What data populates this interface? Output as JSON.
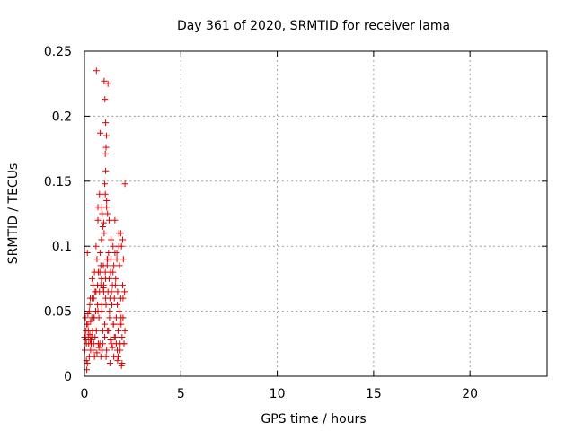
{
  "chart_data": {
    "type": "scatter",
    "title": "Day 361 of 2020, SRMTID for receiver lama",
    "xlabel": "GPS time / hours",
    "ylabel": "SRMTID / TECUs",
    "xlim": [
      0,
      24
    ],
    "ylim": [
      0,
      0.25
    ],
    "xticks": [
      0,
      5,
      10,
      15,
      20
    ],
    "xtick_labels": [
      "0",
      "5",
      "10",
      "15",
      "20"
    ],
    "yticks": [
      0,
      0.05,
      0.1,
      0.15,
      0.2,
      0.25
    ],
    "ytick_labels": [
      "0",
      "0.05",
      "0.1",
      "0.15",
      "0.2",
      "0.25"
    ],
    "grid": true,
    "marker": "plus",
    "color": "#e00000",
    "series": [
      {
        "name": "SRMTID",
        "x": [
          0.0,
          0.02,
          0.05,
          0.08,
          0.1,
          0.12,
          0.15,
          0.18,
          0.2,
          0.22,
          0.25,
          0.28,
          0.3,
          0.32,
          0.35,
          0.38,
          0.4,
          0.42,
          0.45,
          0.48,
          0.5,
          0.52,
          0.55,
          0.58,
          0.6,
          0.62,
          0.65,
          0.68,
          0.7,
          0.72,
          0.75,
          0.78,
          0.8,
          0.82,
          0.85,
          0.88,
          0.9,
          0.92,
          0.95,
          0.98,
          1.0,
          1.02,
          1.05,
          1.08,
          1.1,
          1.12,
          1.15,
          1.18,
          1.2,
          1.22,
          1.25,
          1.28,
          1.3,
          1.32,
          1.35,
          1.38,
          1.4,
          1.42,
          1.45,
          1.48,
          1.5,
          1.52,
          1.55,
          1.58,
          1.6,
          1.62,
          1.65,
          1.68,
          1.7,
          1.72,
          1.75,
          1.78,
          1.8,
          1.82,
          1.85,
          1.88,
          1.9,
          1.92,
          1.95,
          1.98,
          2.0,
          2.02,
          2.05,
          2.08,
          2.1,
          0.05,
          0.12,
          0.2,
          0.3,
          0.4,
          0.5,
          0.6,
          0.7,
          0.8,
          0.9,
          1.0,
          1.1,
          1.2,
          1.3,
          1.4,
          1.5,
          1.6,
          1.7,
          1.8,
          1.9,
          2.0,
          0.1,
          0.25,
          0.35,
          0.45,
          0.55,
          0.65,
          0.75,
          0.85,
          0.95,
          1.05,
          1.15,
          1.25,
          1.35,
          1.45,
          1.55,
          1.65,
          1.75,
          1.85,
          1.95,
          2.05,
          0.08,
          0.18,
          0.28,
          0.38,
          0.48,
          0.58,
          0.68,
          0.78,
          0.88,
          0.98,
          1.08,
          1.18,
          1.28,
          1.38,
          1.48,
          1.58,
          1.68,
          1.78,
          1.88,
          1.98,
          0.15,
          0.32,
          0.52,
          0.72,
          0.92,
          1.12,
          1.32,
          1.52,
          1.72,
          1.92,
          0.62,
          0.82,
          1.02,
          1.22,
          1.06,
          1.1,
          1.14,
          1.12,
          1.08,
          0.7,
          1.1,
          1.15,
          1.05,
          1.2,
          0.9,
          1.0,
          2.1,
          0.95,
          0.85
        ],
        "y": [
          0.03,
          0.02,
          0.045,
          0.028,
          0.012,
          0.005,
          0.095,
          0.04,
          0.03,
          0.025,
          0.05,
          0.032,
          0.028,
          0.042,
          0.025,
          0.03,
          0.06,
          0.035,
          0.07,
          0.025,
          0.045,
          0.08,
          0.065,
          0.05,
          0.1,
          0.035,
          0.09,
          0.055,
          0.12,
          0.08,
          0.045,
          0.14,
          0.025,
          0.095,
          0.07,
          0.105,
          0.05,
          0.125,
          0.035,
          0.085,
          0.065,
          0.11,
          0.04,
          0.14,
          0.075,
          0.055,
          0.13,
          0.09,
          0.035,
          0.065,
          0.095,
          0.12,
          0.045,
          0.06,
          0.08,
          0.105,
          0.025,
          0.055,
          0.07,
          0.1,
          0.04,
          0.085,
          0.06,
          0.12,
          0.03,
          0.075,
          0.045,
          0.095,
          0.02,
          0.065,
          0.035,
          0.11,
          0.05,
          0.085,
          0.025,
          0.06,
          0.04,
          0.1,
          0.03,
          0.07,
          0.045,
          0.09,
          0.025,
          0.065,
          0.035,
          0.03,
          0.04,
          0.035,
          0.06,
          0.075,
          0.045,
          0.065,
          0.05,
          0.08,
          0.055,
          0.07,
          0.06,
          0.09,
          0.05,
          0.065,
          0.04,
          0.07,
          0.055,
          0.04,
          0.045,
          0.06,
          0.025,
          0.015,
          0.028,
          0.02,
          0.03,
          0.018,
          0.022,
          0.015,
          0.025,
          0.03,
          0.02,
          0.035,
          0.028,
          0.022,
          0.03,
          0.025,
          0.015,
          0.02,
          0.01,
          0.025,
          0.035,
          0.048,
          0.055,
          0.045,
          0.06,
          0.05,
          0.07,
          0.065,
          0.075,
          0.068,
          0.08,
          0.085,
          0.075,
          0.09,
          0.08,
          0.095,
          0.09,
          0.1,
          0.11,
          0.105,
          0.01,
          0.02,
          0.015,
          0.025,
          0.02,
          0.015,
          0.01,
          0.015,
          0.012,
          0.008,
          0.235,
          0.187,
          0.227,
          0.225,
          0.213,
          0.195,
          0.185,
          0.176,
          0.171,
          0.13,
          0.158,
          0.135,
          0.148,
          0.125,
          0.13,
          0.118,
          0.148,
          0.115,
          0.085
        ]
      }
    ]
  }
}
